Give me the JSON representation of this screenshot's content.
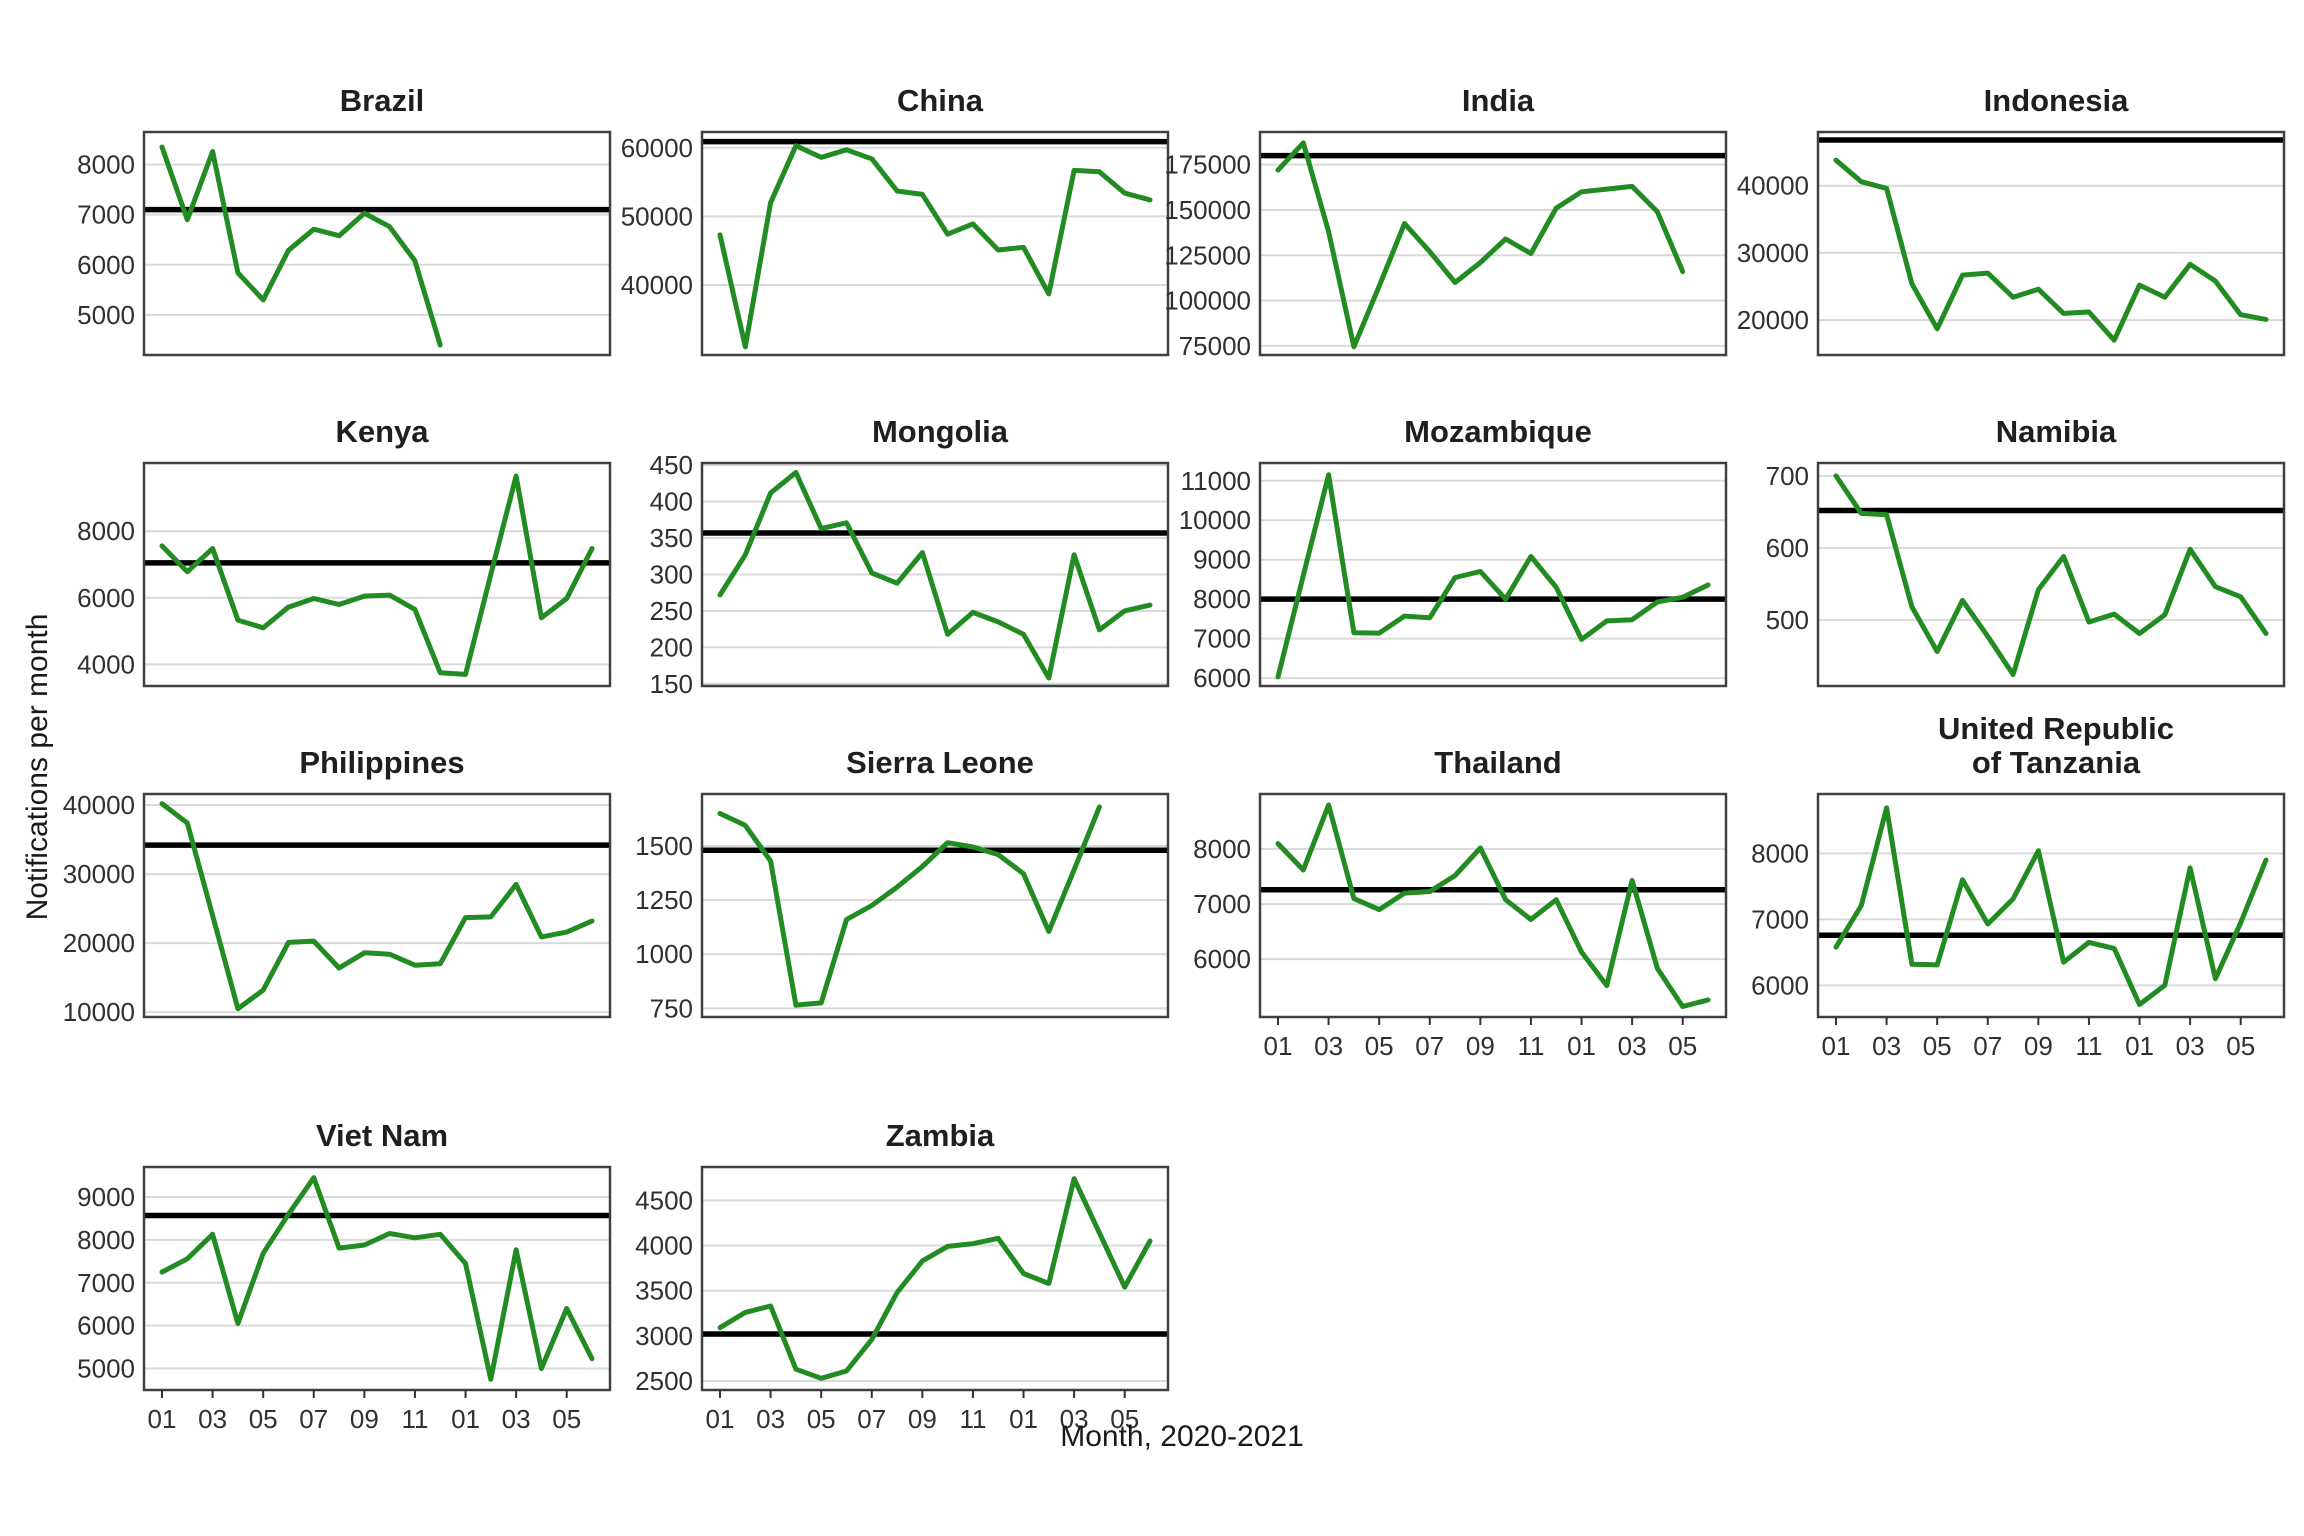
{
  "chart_data": {
    "type": "line",
    "x_label": "Month, 2020-2021",
    "y_label": "Notifications per month",
    "x_tick_labels": [
      "01",
      "03",
      "05",
      "07",
      "09",
      "11",
      "01",
      "03",
      "05"
    ],
    "x_slots": 18,
    "legend": "none",
    "grid": "horizontal-only",
    "colors": {
      "series": "#228B22",
      "reference": "#000000",
      "gridline": "#d9d9d9",
      "panel_border": "#404040",
      "tick_text": "#303030"
    },
    "series_note": "green line = monthly notifications; black horizontal line = pre-pandemic reference level",
    "facets": [
      {
        "name": "Brazil",
        "ref": 7100,
        "ylim": [
          4200,
          8650
        ],
        "y_ticks": [
          5000,
          6000,
          7000,
          8000
        ],
        "values": [
          8350,
          6900,
          8260,
          5840,
          5300,
          6290,
          6710,
          6580,
          7030,
          6760,
          6080,
          4400
        ],
        "show_x": false
      },
      {
        "name": "China",
        "ref": 60900,
        "ylim": [
          29800,
          62300
        ],
        "y_ticks": [
          40000,
          50000,
          60000
        ],
        "values": [
          47300,
          31000,
          52000,
          60300,
          58600,
          59700,
          58400,
          53700,
          53200,
          47400,
          48900,
          45100,
          45500,
          38700,
          56700,
          56500,
          53400,
          52400
        ],
        "show_x": false
      },
      {
        "name": "India",
        "ref": 180000,
        "ylim": [
          70000,
          193000
        ],
        "y_ticks": [
          75000,
          100000,
          125000,
          150000,
          175000
        ],
        "values": [
          172000,
          187000,
          138000,
          74500,
          108000,
          142500,
          127000,
          110000,
          121000,
          134000,
          126000,
          151000,
          160000,
          161500,
          163000,
          149000,
          116000
        ],
        "show_x": false
      },
      {
        "name": "Indonesia",
        "ref": 46800,
        "ylim": [
          14800,
          48000
        ],
        "y_ticks": [
          20000,
          30000,
          40000
        ],
        "values": [
          43800,
          40600,
          39600,
          25400,
          18700,
          26700,
          27000,
          23400,
          24600,
          21000,
          21200,
          17000,
          25200,
          23400,
          28300,
          25800,
          20800,
          20100
        ],
        "show_x": false
      },
      {
        "name": "Kenya",
        "ref": 7050,
        "ylim": [
          3350,
          10050
        ],
        "y_ticks": [
          4000,
          6000,
          8000
        ],
        "values": [
          7560,
          6780,
          7480,
          5330,
          5100,
          5720,
          5980,
          5800,
          6050,
          6080,
          5650,
          3750,
          3700,
          6700,
          9660,
          5400,
          5980,
          7480
        ],
        "show_x": false
      },
      {
        "name": "Mongolia",
        "ref": 357,
        "ylim": [
          147,
          453
        ],
        "y_ticks": [
          150,
          200,
          250,
          300,
          350,
          400,
          450
        ],
        "values": [
          272,
          327,
          412,
          440,
          363,
          371,
          302,
          288,
          330,
          218,
          248,
          235,
          218,
          158,
          327,
          224,
          250,
          258
        ],
        "show_x": false
      },
      {
        "name": "Mozambique",
        "ref": 8000,
        "ylim": [
          5800,
          11450
        ],
        "y_ticks": [
          6000,
          7000,
          8000,
          9000,
          10000,
          11000
        ],
        "values": [
          6030,
          8600,
          11150,
          7150,
          7140,
          7570,
          7530,
          8550,
          8700,
          8000,
          9080,
          8300,
          6980,
          7450,
          7480,
          7930,
          8050,
          8360
        ],
        "show_x": false
      },
      {
        "name": "Namibia",
        "ref": 652,
        "ylim": [
          408,
          718
        ],
        "y_ticks": [
          500,
          600,
          700
        ],
        "values": [
          700,
          648,
          646,
          518,
          456,
          527,
          477,
          424,
          542,
          588,
          497,
          508,
          481,
          507,
          598,
          546,
          532,
          481
        ],
        "show_x": false
      },
      {
        "name": "Philippines",
        "ref": 34200,
        "ylim": [
          9300,
          41600
        ],
        "y_ticks": [
          10000,
          20000,
          30000,
          40000
        ],
        "values": [
          40200,
          37400,
          24000,
          10500,
          13200,
          20100,
          20300,
          16400,
          18600,
          18400,
          16800,
          17000,
          23700,
          23800,
          28500,
          20900,
          21600,
          23200
        ],
        "show_x": false
      },
      {
        "name": "Sierra Leone",
        "ref": 1480,
        "ylim": [
          710,
          1740
        ],
        "y_ticks": [
          750,
          1000,
          1250,
          1500
        ],
        "values": [
          1650,
          1595,
          1430,
          765,
          775,
          1160,
          1225,
          1310,
          1405,
          1515,
          1495,
          1460,
          1372,
          1105,
          1390,
          1680
        ],
        "show_x": false
      },
      {
        "name": "Thailand",
        "ref": 7260,
        "ylim": [
          4950,
          9000
        ],
        "y_ticks": [
          6000,
          7000,
          8000
        ],
        "values": [
          8100,
          7620,
          8800,
          7100,
          6900,
          7200,
          7230,
          7520,
          8020,
          7080,
          6720,
          7080,
          6130,
          5520,
          7430,
          5830,
          5140,
          5260
        ],
        "show_x": true
      },
      {
        "name": "United Republic\nof Tanzania",
        "ref": 6760,
        "ylim": [
          5520,
          8900
        ],
        "y_ticks": [
          6000,
          7000,
          8000
        ],
        "values": [
          6580,
          7210,
          8690,
          6320,
          6310,
          7600,
          6930,
          7310,
          8040,
          6350,
          6650,
          6560,
          5710,
          6000,
          7780,
          6100,
          6950,
          7900
        ],
        "show_x": true
      },
      {
        "name": "Viet Nam",
        "ref": 8570,
        "ylim": [
          4500,
          9700
        ],
        "y_ticks": [
          5000,
          6000,
          7000,
          8000,
          9000
        ],
        "values": [
          7250,
          7560,
          8130,
          6050,
          7690,
          8600,
          9450,
          7810,
          7880,
          8150,
          8050,
          8130,
          7450,
          4750,
          7770,
          5000,
          6400,
          5230
        ],
        "show_x": true
      },
      {
        "name": "Zambia",
        "ref": 3020,
        "ylim": [
          2400,
          4870
        ],
        "y_ticks": [
          2500,
          3000,
          3500,
          4000,
          4500
        ],
        "values": [
          3090,
          3260,
          3330,
          2630,
          2530,
          2610,
          2960,
          3480,
          3830,
          3990,
          4020,
          4080,
          3690,
          3580,
          4740,
          4140,
          3540,
          4050
        ],
        "show_x": true
      }
    ]
  }
}
